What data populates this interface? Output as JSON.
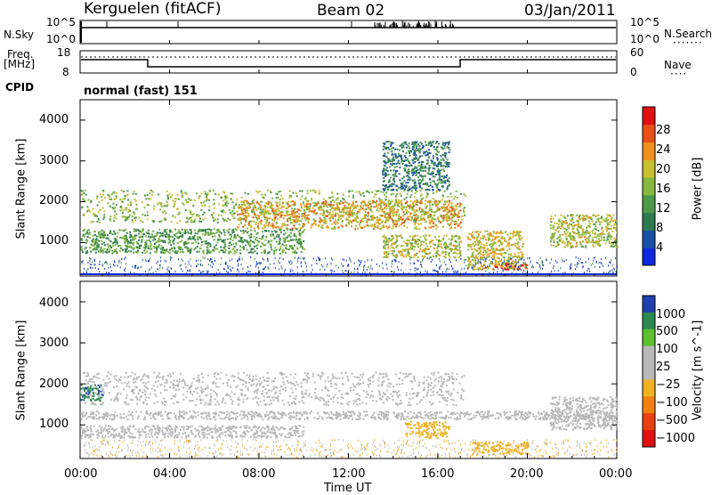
{
  "header": {
    "station": "Kerguelen (fitACF)",
    "beam": "Beam 02",
    "date": "03/Jan/2011"
  },
  "top_panels": {
    "nsky_label": "N.Sky",
    "nsky_ticks": [
      "10^5",
      "10^0"
    ],
    "nsearch_label": "N.Search",
    "nsearch_ticks": [
      "10^5",
      "10^0"
    ],
    "freq_label": "Freq.",
    "freq_unit": "[MHz]",
    "freq_ticks": [
      "18",
      "8"
    ],
    "nave_label": "Nave",
    "nave_ticks": [
      "60",
      "0"
    ],
    "cpid_label": "CPID",
    "cpid_value": "normal (fast) 151"
  },
  "chart_data": [
    {
      "type": "heatmap",
      "title": "",
      "xlabel": "Time UT",
      "ylabel": "Slant Range [km]",
      "x_ticks": [
        "00:00",
        "04:00",
        "08:00",
        "12:00",
        "16:00",
        "20:00",
        "00:00"
      ],
      "y_ticks": [
        "1000",
        "2000",
        "3000",
        "4000"
      ],
      "ylim": [
        180,
        4500
      ],
      "colorbar": {
        "label": "Power [dB]",
        "ticks": [
          "4",
          "8",
          "12",
          "16",
          "20",
          "24",
          "28"
        ],
        "colors": [
          "#1028e0",
          "#1a50a8",
          "#2e7a50",
          "#4c9a48",
          "#86b83e",
          "#c8c030",
          "#f09020",
          "#e85018",
          "#e01010"
        ]
      },
      "echo_regions": [
        {
          "t0": 0.0,
          "t1": 17.2,
          "r0": 1500,
          "r1": 2300,
          "power_dB": 16
        },
        {
          "t0": 7.0,
          "t1": 17.0,
          "r0": 1350,
          "r1": 2050,
          "power_dB": 22
        },
        {
          "t0": 0.0,
          "t1": 10.0,
          "r0": 750,
          "r1": 1350,
          "power_dB": 12
        },
        {
          "t0": 13.5,
          "t1": 17.0,
          "r0": 650,
          "r1": 1200,
          "power_dB": 18
        },
        {
          "t0": 17.3,
          "t1": 19.8,
          "r0": 350,
          "r1": 1300,
          "power_dB": 20
        },
        {
          "t0": 18.5,
          "t1": 20.0,
          "r0": 350,
          "r1": 500,
          "power_dB": 28
        },
        {
          "t0": 21.0,
          "t1": 24.0,
          "r0": 900,
          "r1": 1700,
          "power_dB": 18
        },
        {
          "t0": 13.5,
          "t1": 16.5,
          "r0": 2300,
          "r1": 3500,
          "power_dB": 8
        }
      ]
    },
    {
      "type": "heatmap",
      "title": "",
      "xlabel": "Time UT",
      "ylabel": "Slant Range [km]",
      "x_ticks": [
        "00:00",
        "04:00",
        "08:00",
        "12:00",
        "16:00",
        "20:00",
        "00:00"
      ],
      "y_ticks": [
        "1000",
        "2000",
        "3000",
        "4000"
      ],
      "ylim": [
        180,
        4500
      ],
      "colorbar": {
        "label": "Velocity [m s^-1]",
        "ticks": [
          "1000",
          "500",
          "100",
          "25",
          "−25",
          "−100",
          "−500",
          "−1000"
        ],
        "colors": [
          "#2040b0",
          "#2c8a50",
          "#5cc030",
          "#b8b8b8",
          "#b8b8b8",
          "#f0b020",
          "#f08010",
          "#e84010",
          "#e01010"
        ]
      },
      "echo_regions": [
        {
          "t0": 0.0,
          "t1": 17.2,
          "r0": 1500,
          "r1": 2300,
          "velocity": 0
        },
        {
          "t0": 0.0,
          "t1": 24.0,
          "r0": 1150,
          "r1": 1350,
          "velocity": 0
        },
        {
          "t0": 0.0,
          "t1": 10.0,
          "r0": 700,
          "r1": 1000,
          "velocity": 0
        },
        {
          "t0": 14.5,
          "t1": 16.5,
          "r0": 700,
          "r1": 1100,
          "velocity": -150
        },
        {
          "t0": 17.5,
          "t1": 20.0,
          "r0": 300,
          "r1": 600,
          "velocity": -120
        },
        {
          "t0": 21.0,
          "t1": 24.0,
          "r0": 900,
          "r1": 1700,
          "velocity": 0
        },
        {
          "t0": 0.0,
          "t1": 1.0,
          "r0": 1600,
          "r1": 2000,
          "velocity": 600
        }
      ]
    }
  ]
}
